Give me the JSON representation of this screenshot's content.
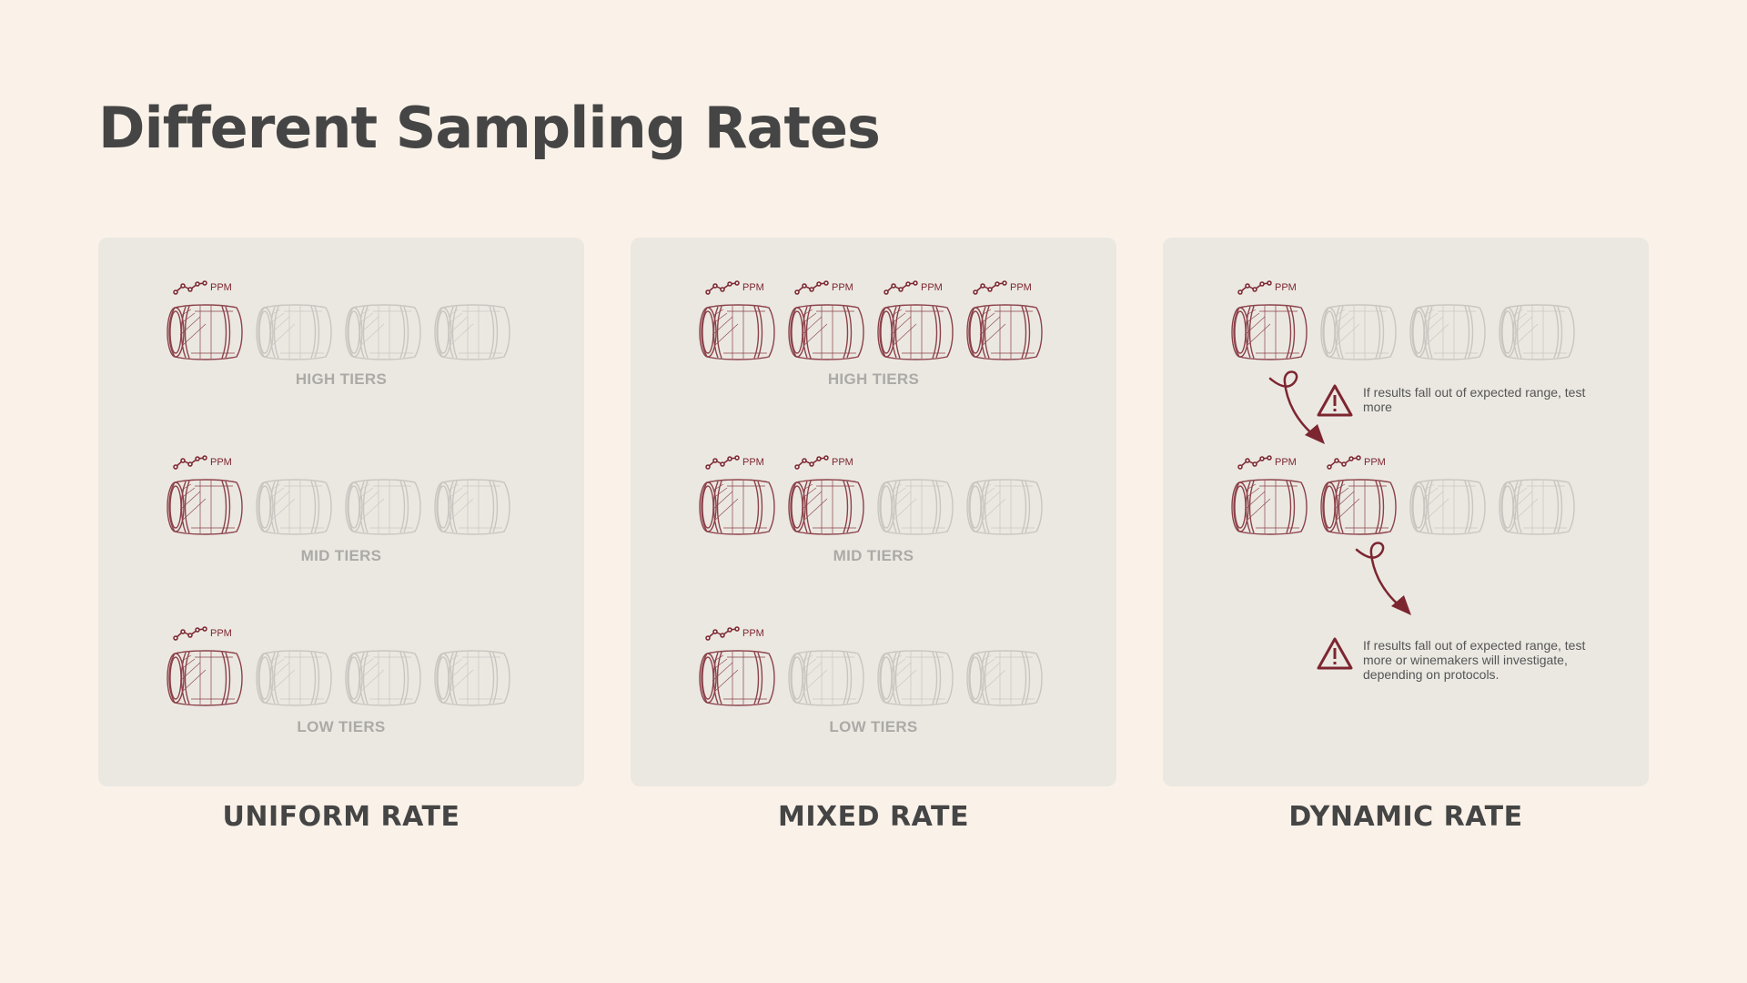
{
  "title": "Different Sampling Rates",
  "colors": {
    "accent": "#7c2630",
    "inactive": "#c9c6c1",
    "panel": "#ebe8e2",
    "background": "#faf2e9"
  },
  "icons": {
    "barrel": "barrel-icon",
    "ppm_chart": "line-chart-icon",
    "warning": "warning-triangle-icon",
    "arrow": "curly-arrow-icon"
  },
  "ppm_label": "PPM",
  "panels": [
    {
      "label": "UNIFORM RATE",
      "tiers": [
        {
          "label": "HIGH TIERS",
          "sampled": [
            true,
            false,
            false,
            false
          ]
        },
        {
          "label": "MID TIERS",
          "sampled": [
            true,
            false,
            false,
            false
          ]
        },
        {
          "label": "LOW TIERS",
          "sampled": [
            true,
            false,
            false,
            false
          ]
        }
      ]
    },
    {
      "label": "MIXED RATE",
      "tiers": [
        {
          "label": "HIGH TIERS",
          "sampled": [
            true,
            true,
            true,
            true
          ]
        },
        {
          "label": "MID TIERS",
          "sampled": [
            true,
            true,
            false,
            false
          ]
        },
        {
          "label": "LOW TIERS",
          "sampled": [
            true,
            false,
            false,
            false
          ]
        }
      ]
    },
    {
      "label": "DYNAMIC RATE",
      "rows": [
        {
          "sampled": [
            true,
            false,
            false,
            false
          ]
        },
        {
          "sampled": [
            true,
            true,
            false,
            false
          ]
        }
      ],
      "notes": [
        "If results fall out of expected range, test more",
        "If results fall out of expected range, test more or winemakers will investigate, depending on protocols."
      ]
    }
  ]
}
